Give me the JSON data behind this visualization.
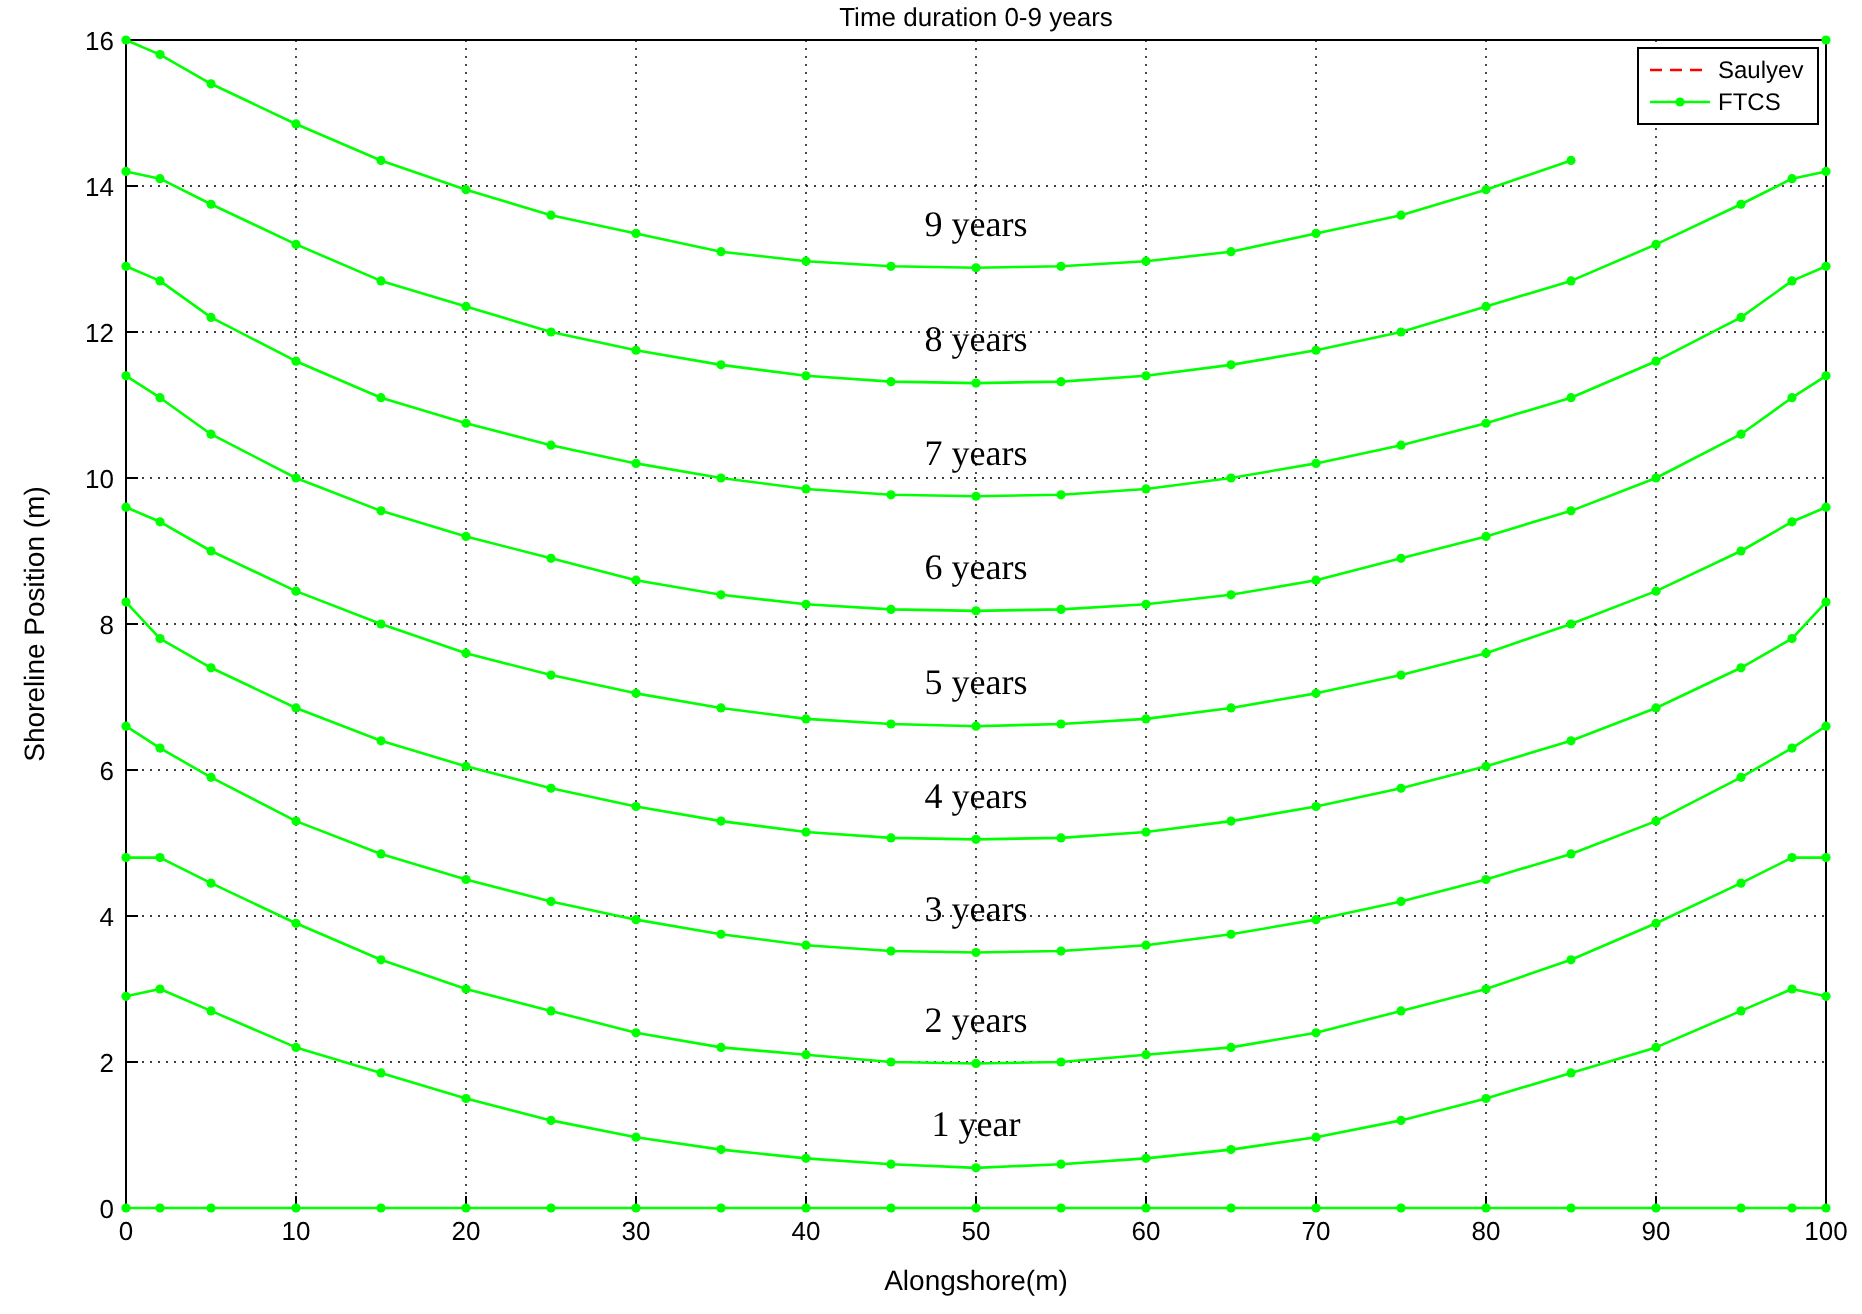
{
  "chart_data": {
    "type": "line",
    "title": "Time duration 0-9 years",
    "xlabel": "Alongshore(m)",
    "ylabel": "Shoreline Position (m)",
    "x": [
      0,
      2,
      5,
      10,
      15,
      20,
      25,
      30,
      35,
      40,
      45,
      50,
      55,
      60,
      65,
      70,
      75,
      80,
      85,
      90,
      95,
      98,
      100
    ],
    "xlim": [
      0,
      100
    ],
    "ylim": [
      0,
      16
    ],
    "xticks": [
      0,
      10,
      20,
      30,
      40,
      50,
      60,
      70,
      80,
      90,
      100
    ],
    "yticks": [
      0,
      2,
      4,
      6,
      8,
      10,
      12,
      14,
      16
    ],
    "grid": true,
    "legend": "top right",
    "series": [
      {
        "name": "Saulyev",
        "color": "#ff0000",
        "line_style": "dashed",
        "marker": "none",
        "values": [
          null,
          null,
          null,
          null,
          null,
          null,
          null,
          null,
          null,
          null,
          null,
          null,
          null,
          null,
          null,
          null,
          null,
          null,
          null,
          null,
          null,
          null,
          null
        ]
      },
      {
        "name": "FTCS",
        "color": "#00ff00",
        "line_style": "solid",
        "marker": "circle",
        "values": [
          0,
          0,
          0,
          0,
          0,
          0,
          0,
          0,
          0,
          0,
          0,
          0,
          0,
          0,
          0,
          0,
          0,
          0,
          0,
          0,
          0,
          0,
          0
        ]
      },
      {
        "color": "#00ff00",
        "line_style": "solid",
        "marker": "circle",
        "values": [
          2.9,
          3.0,
          2.7,
          2.2,
          1.85,
          1.5,
          1.2,
          0.97,
          0.8,
          0.68,
          0.6,
          0.55,
          0.6,
          0.68,
          0.8,
          0.97,
          1.2,
          1.5,
          1.85,
          2.2,
          2.7,
          3.0,
          2.9
        ]
      },
      {
        "color": "#00ff00",
        "line_style": "solid",
        "marker": "circle",
        "values": [
          4.8,
          4.8,
          4.45,
          3.9,
          3.4,
          3.0,
          2.7,
          2.4,
          2.2,
          2.1,
          2.0,
          1.98,
          2.0,
          2.1,
          2.2,
          2.4,
          2.7,
          3.0,
          3.4,
          3.9,
          4.45,
          4.8,
          4.8
        ]
      },
      {
        "color": "#00ff00",
        "line_style": "solid",
        "marker": "circle",
        "values": [
          6.6,
          6.3,
          5.9,
          5.3,
          4.85,
          4.5,
          4.2,
          3.95,
          3.75,
          3.6,
          3.52,
          3.5,
          3.52,
          3.6,
          3.75,
          3.95,
          4.2,
          4.5,
          4.85,
          5.3,
          5.9,
          6.3,
          6.6
        ]
      },
      {
        "color": "#00ff00",
        "line_style": "solid",
        "marker": "circle",
        "values": [
          8.3,
          7.8,
          7.4,
          6.85,
          6.4,
          6.05,
          5.75,
          5.5,
          5.3,
          5.15,
          5.07,
          5.05,
          5.07,
          5.15,
          5.3,
          5.5,
          5.75,
          6.05,
          6.4,
          6.85,
          7.4,
          7.8,
          8.3
        ]
      },
      {
        "color": "#00ff00",
        "line_style": "solid",
        "marker": "circle",
        "values": [
          9.6,
          9.4,
          9.0,
          8.45,
          8.0,
          7.6,
          7.3,
          7.05,
          6.85,
          6.7,
          6.63,
          6.6,
          6.63,
          6.7,
          6.85,
          7.05,
          7.3,
          7.6,
          8.0,
          8.45,
          9.0,
          9.4,
          9.6
        ]
      },
      {
        "color": "#00ff00",
        "line_style": "solid",
        "marker": "circle",
        "values": [
          11.4,
          11.1,
          10.6,
          10.0,
          9.55,
          9.2,
          8.9,
          8.6,
          8.4,
          8.27,
          8.2,
          8.18,
          8.2,
          8.27,
          8.4,
          8.6,
          8.9,
          9.2,
          9.55,
          10.0,
          10.6,
          11.1,
          11.4
        ]
      },
      {
        "color": "#00ff00",
        "line_style": "solid",
        "marker": "circle",
        "values": [
          12.9,
          12.7,
          12.2,
          11.6,
          11.1,
          10.75,
          10.45,
          10.2,
          10.0,
          9.85,
          9.77,
          9.75,
          9.77,
          9.85,
          10.0,
          10.2,
          10.45,
          10.75,
          11.1,
          11.6,
          12.2,
          12.7,
          12.9
        ]
      },
      {
        "color": "#00ff00",
        "line_style": "solid",
        "marker": "circle",
        "values": [
          14.2,
          14.1,
          13.75,
          13.2,
          12.7,
          12.35,
          12.0,
          11.75,
          11.55,
          11.4,
          11.32,
          11.3,
          11.32,
          11.4,
          11.55,
          11.75,
          12.0,
          12.35,
          12.7,
          13.2,
          13.75,
          14.1,
          14.2
        ]
      },
      {
        "color": "#00ff00",
        "line_style": "solid",
        "marker": "circle",
        "values": [
          16,
          15.8,
          15.4,
          14.85,
          14.35,
          13.95,
          13.6,
          13.35,
          13.1,
          12.97,
          12.9,
          12.88,
          12.9,
          12.97,
          13.1,
          13.35,
          13.6,
          13.95,
          14.35,
          null,
          null,
          null,
          16
        ]
      }
    ],
    "annotations": [
      "9 years",
      "8 years",
      "7 years",
      "6 years",
      "5 years",
      "4 years",
      "3 years",
      "2 years",
      "1 year"
    ]
  }
}
